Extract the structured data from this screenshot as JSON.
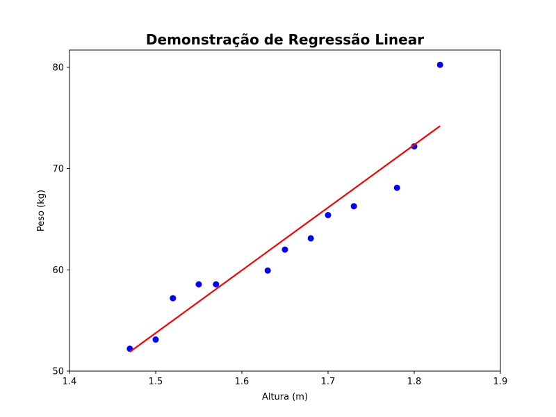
{
  "chart_data": {
    "type": "scatter",
    "title": "Demonstração de Regressão Linear",
    "xlabel": "Altura (m)",
    "ylabel": "Peso (kg)",
    "xlim": [
      1.4,
      1.9
    ],
    "ylim": [
      50,
      81.7
    ],
    "xticks": [
      1.4,
      1.5,
      1.6,
      1.7,
      1.8,
      1.9
    ],
    "xtick_labels": [
      "1.4",
      "1.5",
      "1.6",
      "1.7",
      "1.8",
      "1.9"
    ],
    "yticks": [
      50,
      60,
      70,
      80
    ],
    "ytick_labels": [
      "50",
      "60",
      "70",
      "80"
    ],
    "grid": false,
    "series": [
      {
        "type": "scatter",
        "color": "#0000ff",
        "x": [
          1.47,
          1.5,
          1.52,
          1.55,
          1.57,
          1.63,
          1.65,
          1.68,
          1.7,
          1.73,
          1.78,
          1.8,
          1.83
        ],
        "y": [
          52.21,
          53.12,
          57.2,
          58.57,
          58.57,
          59.93,
          62.0,
          63.11,
          65.4,
          66.28,
          68.1,
          72.19,
          80.24
        ]
      },
      {
        "type": "line",
        "color": "#ff0000",
        "x": [
          1.47,
          1.83
        ],
        "y": [
          51.9,
          74.2
        ]
      }
    ]
  }
}
